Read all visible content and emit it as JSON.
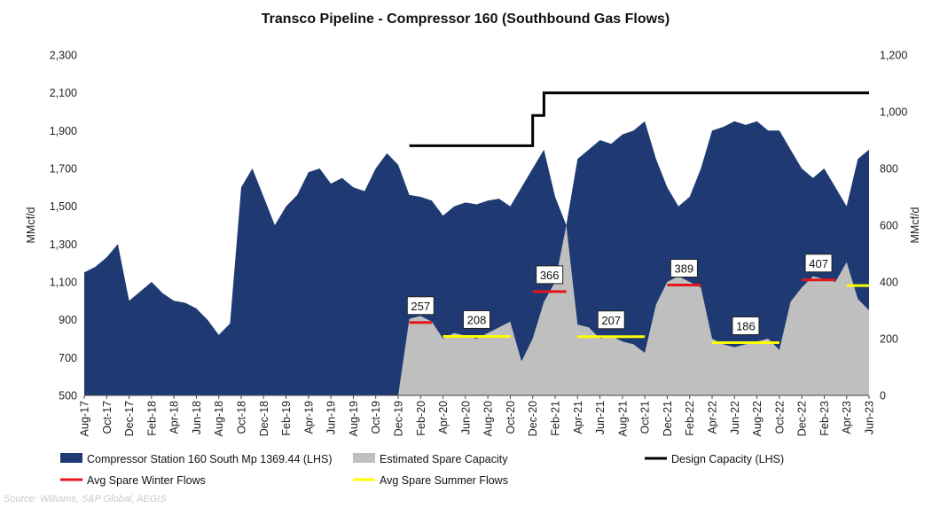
{
  "chart_data": {
    "type": "area",
    "title": "Transco Pipeline - Compressor 160 (Southbound Gas Flows)",
    "y_left_label": "MMcf/d",
    "y_right_label": "MMcf/d",
    "y_left_ticks": [
      "500",
      "700",
      "900",
      "1,100",
      "1,300",
      "1,500",
      "1,700",
      "1,900",
      "2,100",
      "2,300"
    ],
    "y_right_ticks": [
      "0",
      "200",
      "400",
      "600",
      "800",
      "1,000",
      "1,200"
    ],
    "ylim_left": [
      500,
      2300
    ],
    "ylim_right": [
      0,
      1200
    ],
    "x_ticks": [
      "Aug-17",
      "Oct-17",
      "Dec-17",
      "Feb-18",
      "Apr-18",
      "Jun-18",
      "Aug-18",
      "Oct-18",
      "Dec-18",
      "Feb-19",
      "Apr-19",
      "Jun-19",
      "Aug-19",
      "Oct-19",
      "Dec-19",
      "Feb-20",
      "Apr-20",
      "Jun-20",
      "Aug-20",
      "Oct-20",
      "Dec-20",
      "Feb-21",
      "Apr-21",
      "Jun-21",
      "Aug-21",
      "Oct-21",
      "Dec-21",
      "Feb-22",
      "Apr-22",
      "Jun-22",
      "Aug-22",
      "Oct-22",
      "Dec-22",
      "Feb-23",
      "Apr-23",
      "Jun-23"
    ],
    "x_range": [
      "2017-08",
      "2023-06"
    ],
    "series": [
      {
        "name": "Compressor Station 160 South Mp 1369.44 (LHS)",
        "axis": "left",
        "style": "area",
        "color": "#1f3a73",
        "points": [
          [
            "2017-08",
            1150
          ],
          [
            "2017-09",
            1180
          ],
          [
            "2017-10",
            1230
          ],
          [
            "2017-11",
            1300
          ],
          [
            "2017-12",
            1000
          ],
          [
            "2018-01",
            1050
          ],
          [
            "2018-02",
            1100
          ],
          [
            "2018-03",
            1040
          ],
          [
            "2018-04",
            1000
          ],
          [
            "2018-05",
            990
          ],
          [
            "2018-06",
            960
          ],
          [
            "2018-07",
            900
          ],
          [
            "2018-08",
            820
          ],
          [
            "2018-09",
            880
          ],
          [
            "2018-10",
            1600
          ],
          [
            "2018-11",
            1700
          ],
          [
            "2018-12",
            1550
          ],
          [
            "2019-01",
            1400
          ],
          [
            "2019-02",
            1500
          ],
          [
            "2019-03",
            1560
          ],
          [
            "2019-04",
            1680
          ],
          [
            "2019-05",
            1700
          ],
          [
            "2019-06",
            1620
          ],
          [
            "2019-07",
            1650
          ],
          [
            "2019-08",
            1600
          ],
          [
            "2019-09",
            1580
          ],
          [
            "2019-10",
            1700
          ],
          [
            "2019-11",
            1780
          ],
          [
            "2019-12",
            1720
          ],
          [
            "2020-01",
            1560
          ],
          [
            "2020-02",
            1550
          ],
          [
            "2020-03",
            1530
          ],
          [
            "2020-04",
            1450
          ],
          [
            "2020-05",
            1500
          ],
          [
            "2020-06",
            1520
          ],
          [
            "2020-07",
            1510
          ],
          [
            "2020-08",
            1530
          ],
          [
            "2020-09",
            1540
          ],
          [
            "2020-10",
            1500
          ],
          [
            "2020-11",
            1600
          ],
          [
            "2020-12",
            1700
          ],
          [
            "2021-01",
            1800
          ],
          [
            "2021-02",
            1550
          ],
          [
            "2021-03",
            1400
          ],
          [
            "2021-04",
            1750
          ],
          [
            "2021-05",
            1800
          ],
          [
            "2021-06",
            1850
          ],
          [
            "2021-07",
            1830
          ],
          [
            "2021-08",
            1880
          ],
          [
            "2021-09",
            1900
          ],
          [
            "2021-10",
            1950
          ],
          [
            "2021-11",
            1750
          ],
          [
            "2021-12",
            1600
          ],
          [
            "2022-01",
            1500
          ],
          [
            "2022-02",
            1550
          ],
          [
            "2022-03",
            1700
          ],
          [
            "2022-04",
            1900
          ],
          [
            "2022-05",
            1920
          ],
          [
            "2022-06",
            1950
          ],
          [
            "2022-07",
            1930
          ],
          [
            "2022-08",
            1950
          ],
          [
            "2022-09",
            1900
          ],
          [
            "2022-10",
            1900
          ],
          [
            "2022-11",
            1800
          ],
          [
            "2022-12",
            1700
          ],
          [
            "2023-01",
            1650
          ],
          [
            "2023-02",
            1700
          ],
          [
            "2023-03",
            1600
          ],
          [
            "2023-04",
            1500
          ],
          [
            "2023-05",
            1750
          ],
          [
            "2023-06",
            1800
          ]
        ]
      },
      {
        "name": "Estimated Spare Capacity",
        "axis": "right",
        "style": "area",
        "color": "#bfbfbf",
        "points": [
          [
            "2019-12",
            0
          ],
          [
            "2020-01",
            270
          ],
          [
            "2020-02",
            280
          ],
          [
            "2020-03",
            260
          ],
          [
            "2020-04",
            200
          ],
          [
            "2020-05",
            220
          ],
          [
            "2020-06",
            210
          ],
          [
            "2020-07",
            200
          ],
          [
            "2020-08",
            220
          ],
          [
            "2020-09",
            240
          ],
          [
            "2020-10",
            260
          ],
          [
            "2020-11",
            120
          ],
          [
            "2020-12",
            200
          ],
          [
            "2021-01",
            330
          ],
          [
            "2021-02",
            400
          ],
          [
            "2021-03",
            600
          ],
          [
            "2021-04",
            250
          ],
          [
            "2021-05",
            240
          ],
          [
            "2021-06",
            200
          ],
          [
            "2021-07",
            210
          ],
          [
            "2021-08",
            190
          ],
          [
            "2021-09",
            180
          ],
          [
            "2021-10",
            150
          ],
          [
            "2021-11",
            320
          ],
          [
            "2021-12",
            400
          ],
          [
            "2022-01",
            420
          ],
          [
            "2022-02",
            400
          ],
          [
            "2022-03",
            380
          ],
          [
            "2022-04",
            200
          ],
          [
            "2022-05",
            180
          ],
          [
            "2022-06",
            170
          ],
          [
            "2022-07",
            180
          ],
          [
            "2022-08",
            190
          ],
          [
            "2022-09",
            200
          ],
          [
            "2022-10",
            160
          ],
          [
            "2022-11",
            330
          ],
          [
            "2022-12",
            380
          ],
          [
            "2023-01",
            420
          ],
          [
            "2023-02",
            410
          ],
          [
            "2023-03",
            400
          ],
          [
            "2023-04",
            470
          ],
          [
            "2023-05",
            340
          ],
          [
            "2023-06",
            300
          ]
        ]
      },
      {
        "name": "Design Capacity (LHS)",
        "axis": "left",
        "style": "step-line",
        "color": "#000000",
        "points": [
          [
            "2020-01",
            1820
          ],
          [
            "2020-12",
            1820
          ],
          [
            "2020-12",
            1980
          ],
          [
            "2021-01",
            1980
          ],
          [
            "2021-01",
            2100
          ],
          [
            "2023-06",
            2100
          ]
        ]
      },
      {
        "name": "Avg Spare Winter Flows",
        "axis": "right",
        "style": "segments",
        "color": "#e5161b",
        "segments": [
          {
            "start": "2020-01",
            "end": "2020-03",
            "value": 257,
            "label": "257"
          },
          {
            "start": "2020-12",
            "end": "2021-03",
            "value": 366,
            "label": "366"
          },
          {
            "start": "2021-12",
            "end": "2022-03",
            "value": 389,
            "label": "389"
          },
          {
            "start": "2022-12",
            "end": "2023-03",
            "value": 407,
            "label": "407"
          }
        ]
      },
      {
        "name": "Avg Spare Summer Flows",
        "axis": "right",
        "style": "segments",
        "color": "#ffff00",
        "segments": [
          {
            "start": "2020-04",
            "end": "2020-10",
            "value": 208,
            "label": "208"
          },
          {
            "start": "2021-04",
            "end": "2021-10",
            "value": 207,
            "label": "207"
          },
          {
            "start": "2022-04",
            "end": "2022-10",
            "value": 186,
            "label": "186"
          },
          {
            "start": "2023-04",
            "end": "2023-06",
            "value": 387,
            "label": ""
          }
        ]
      }
    ],
    "legend": [
      {
        "label": "Compressor Station 160 South Mp 1369.44 (LHS)",
        "symbol": "rect",
        "color": "#1f3a73"
      },
      {
        "label": "Estimated Spare Capacity",
        "symbol": "rect",
        "color": "#bfbfbf"
      },
      {
        "label": "Design Capacity (LHS)",
        "symbol": "line",
        "color": "#000000"
      },
      {
        "label": "Avg Spare Winter Flows",
        "symbol": "line",
        "color": "#e5161b"
      },
      {
        "label": "Avg Spare Summer Flows",
        "symbol": "line",
        "color": "#ffff00"
      }
    ],
    "legend_position": "bottom",
    "grid": false,
    "source": "Source: Williams, S&P Global, AEGIS"
  }
}
